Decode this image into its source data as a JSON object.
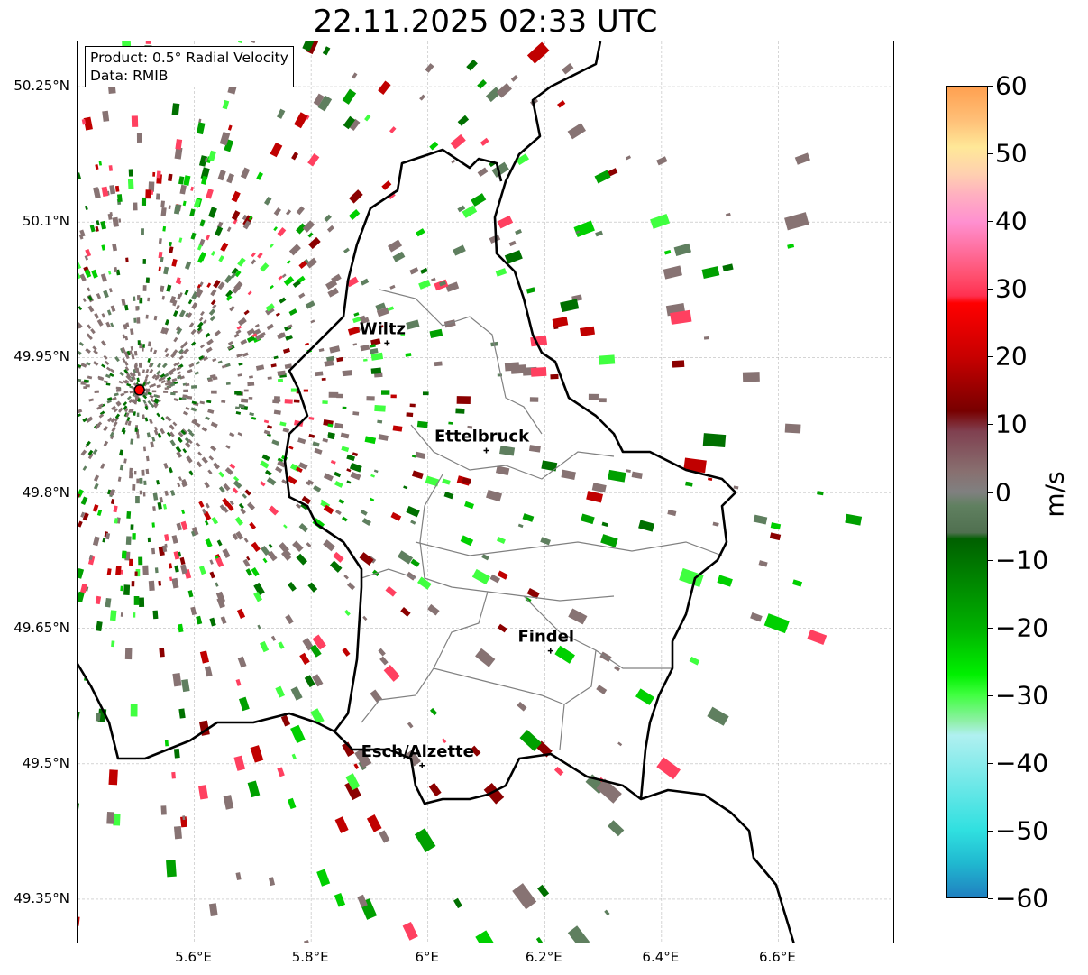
{
  "title": "22.11.2025 02:33 UTC",
  "info": {
    "product": "Product: 0.5° Radial Velocity",
    "data": "Data: RMIB"
  },
  "lat_ticks": [
    "50.25°N",
    "50.1°N",
    "49.95°N",
    "49.8°N",
    "49.65°N",
    "49.5°N",
    "49.35°N"
  ],
  "lat_values": [
    50.25,
    50.1,
    49.95,
    49.8,
    49.65,
    49.5,
    49.35
  ],
  "lon_ticks": [
    "5.6°E",
    "5.8°E",
    "6°E",
    "6.2°E",
    "6.4°E",
    "6.6°E"
  ],
  "lon_values": [
    5.6,
    5.8,
    6.0,
    6.2,
    6.4,
    6.6
  ],
  "extent": {
    "lon": [
      5.4,
      6.8
    ],
    "lat": [
      49.3,
      50.3
    ]
  },
  "cities": [
    {
      "name": "Wiltz",
      "lon": 5.93,
      "lat": 49.966
    },
    {
      "name": "Ettelbruck",
      "lon": 6.1,
      "lat": 49.847
    },
    {
      "name": "Findel",
      "lon": 6.21,
      "lat": 49.625
    },
    {
      "name": "Esch/Alzette",
      "lon": 5.99,
      "lat": 49.498
    }
  ],
  "radar": {
    "lon": 5.506,
    "lat": 49.914,
    "color": "#ff0000"
  },
  "colorbar": {
    "label": "m/s",
    "ticks": [
      "60",
      "50",
      "40",
      "30",
      "20",
      "10",
      "0",
      "−10",
      "−20",
      "−30",
      "−40",
      "−50",
      "−60"
    ],
    "tick_values": [
      60,
      50,
      40,
      30,
      20,
      10,
      0,
      -10,
      -20,
      -30,
      -40,
      -50,
      -60
    ],
    "range": [
      -60,
      60
    ],
    "stops": [
      [
        60,
        "#ffa050"
      ],
      [
        55,
        "#ffc078"
      ],
      [
        51,
        "#ffe898"
      ],
      [
        47,
        "#ffd0b0"
      ],
      [
        44,
        "#ffb0c0"
      ],
      [
        40,
        "#ff90d0"
      ],
      [
        36,
        "#ff70a0"
      ],
      [
        32,
        "#ff5070"
      ],
      [
        29,
        "#ff3050"
      ],
      [
        28,
        "#ff0000"
      ],
      [
        20,
        "#c80000"
      ],
      [
        12,
        "#780000"
      ],
      [
        9,
        "#804050"
      ],
      [
        3,
        "#887070"
      ],
      [
        0,
        "#808080"
      ],
      [
        -2,
        "#608060"
      ],
      [
        -6,
        "#507050"
      ],
      [
        -7,
        "#006000"
      ],
      [
        -20,
        "#00b000"
      ],
      [
        -27,
        "#00f000"
      ],
      [
        -30,
        "#40ff40"
      ],
      [
        -34,
        "#90f0a8"
      ],
      [
        -36,
        "#b0f0f0"
      ],
      [
        -50,
        "#30e0e0"
      ],
      [
        -55,
        "#20b8d0"
      ],
      [
        -60,
        "#2080c0"
      ]
    ]
  }
}
